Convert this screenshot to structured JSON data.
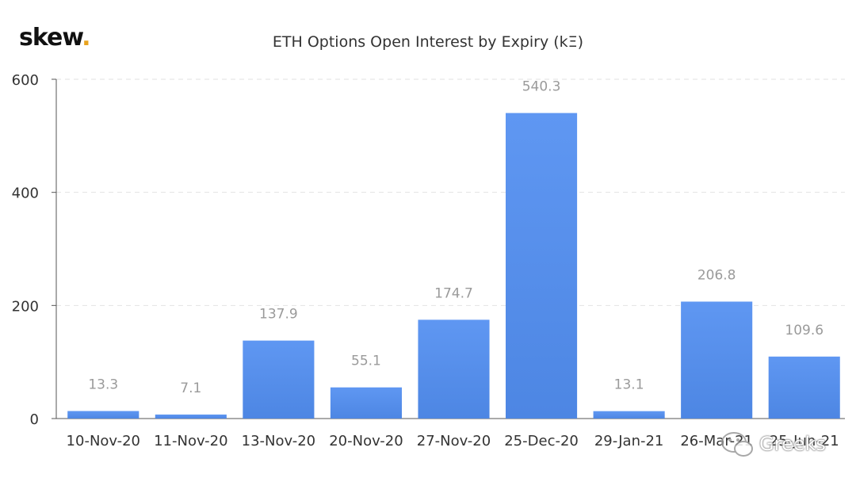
{
  "brand": {
    "name": "skew",
    "dot": ".",
    "dot_color": "#e8a31f"
  },
  "title": "ETH Options Open Interest by Expiry (kΞ)",
  "watermark": {
    "text": "Greeks"
  },
  "chart_data": {
    "type": "bar",
    "title": "ETH Options Open Interest by Expiry (kΞ)",
    "xlabel": "",
    "ylabel": "",
    "ylim": [
      0,
      600
    ],
    "yticks": [
      0,
      200,
      400,
      600
    ],
    "grid": true,
    "bar_color_top": "#5f97f2",
    "bar_color_bottom": "#4d86e3",
    "categories": [
      "10-Nov-20",
      "11-Nov-20",
      "13-Nov-20",
      "20-Nov-20",
      "27-Nov-20",
      "25-Dec-20",
      "29-Jan-21",
      "26-Mar-21",
      "25-Jun-21"
    ],
    "values": [
      13.3,
      7.1,
      137.9,
      55.1,
      174.7,
      540.3,
      13.1,
      206.8,
      109.6
    ],
    "data_labels": [
      "13.3",
      "7.1",
      "137.9",
      "55.1",
      "174.7",
      "540.3",
      "13.1",
      "206.8",
      "109.6"
    ]
  }
}
